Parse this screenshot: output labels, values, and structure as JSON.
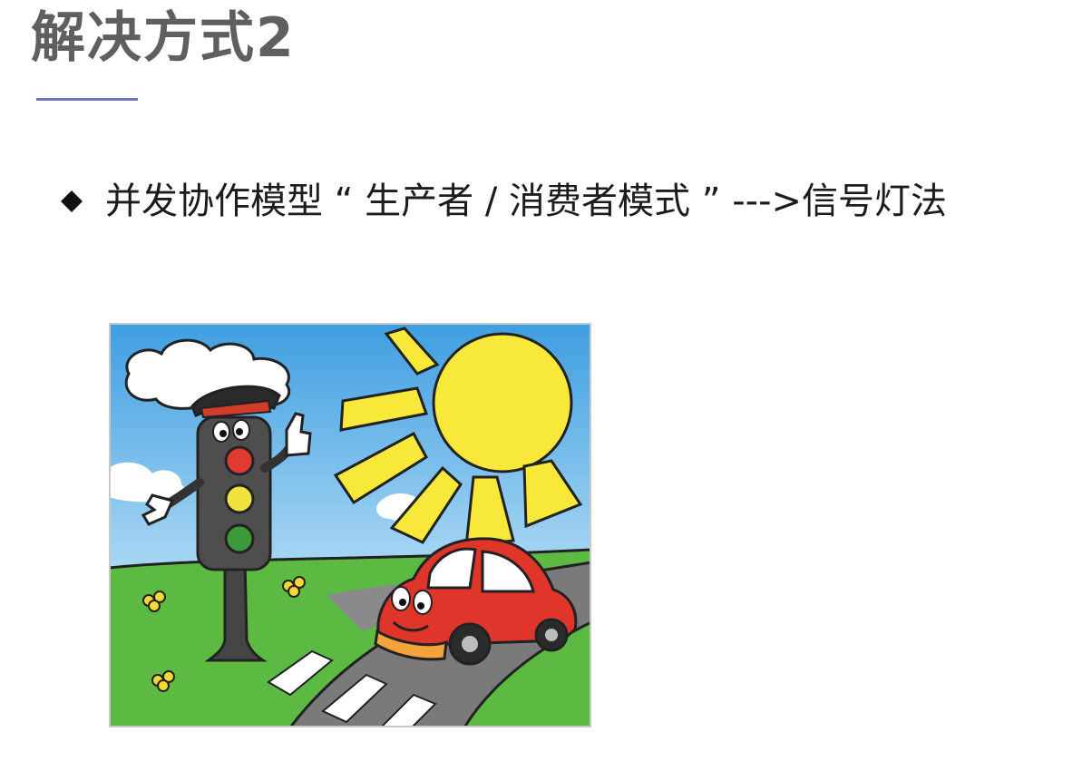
{
  "slide": {
    "title": "解决方式2",
    "bullet": "并发协作模型 “ 生产者 / 消费者模式 ” --->信号灯法"
  },
  "colors": {
    "title": "#5f5f5f",
    "underline": "#6b74c9",
    "bullet_text": "#1c1c1c"
  },
  "illustration": {
    "icons": [
      "traffic-light-character",
      "sun",
      "red-car",
      "cloud",
      "zebra-crossing",
      "flower"
    ]
  }
}
